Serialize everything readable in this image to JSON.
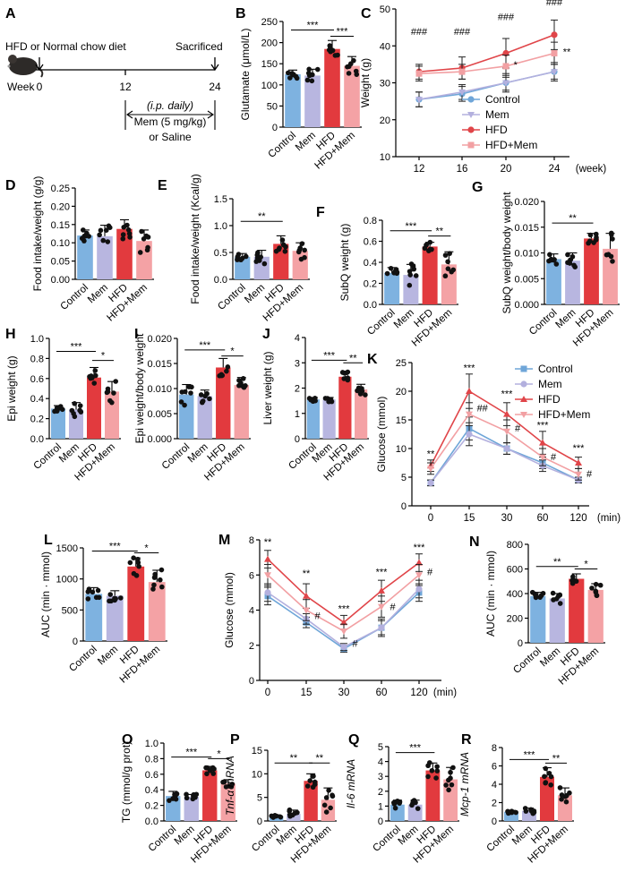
{
  "colors": {
    "control": "#7EB2E0",
    "mem": "#B8B6E0",
    "hfd": "#E23A3E",
    "hfdmem": "#F4A2A5"
  },
  "groups": [
    "Control",
    "Mem",
    "HFD",
    "HFD+Mem"
  ],
  "panel_a": {
    "letter": "A",
    "top_label": "HFD or Normal chow diet",
    "sacrificed": "Sacrificed",
    "week_prefix": "Week",
    "w0": "0",
    "w12": "12",
    "w24": "24",
    "ip": "(i.p. daily)",
    "dose": "Mem (5 mg/kg)",
    "saline": "or Saline"
  },
  "chart_data": [
    {
      "id": "B",
      "type": "bar",
      "ylabel": "Glutamate (μmol/L)",
      "ylim": [
        0,
        250
      ],
      "yticks": [
        "0",
        "50",
        "100",
        "150",
        "200",
        "250"
      ],
      "categories": [
        "Control",
        "Mem",
        "HFD",
        "HFD+Mem"
      ],
      "values": [
        125,
        122,
        185,
        145
      ],
      "errors": [
        10,
        15,
        20,
        22
      ],
      "sig": [
        {
          "from": 0,
          "to": 2,
          "label": "***",
          "y": 230
        },
        {
          "from": 2,
          "to": 3,
          "label": "***",
          "y": 215
        }
      ]
    },
    {
      "id": "D",
      "type": "bar",
      "ylabel": "Food intake/weight (g/g)",
      "ylim": [
        0,
        0.25
      ],
      "yticks": [
        "0.00",
        "0.05",
        "0.10",
        "0.15",
        "0.20",
        "0.25"
      ],
      "categories": [
        "Control",
        "Mem",
        "HFD",
        "HFD+Mem"
      ],
      "values": [
        0.12,
        0.118,
        0.138,
        0.105
      ],
      "errors": [
        0.015,
        0.03,
        0.025,
        0.03
      ],
      "sig": []
    },
    {
      "id": "E",
      "type": "bar",
      "ylabel": "Food intake/weight (Kcal/g)",
      "ylim": [
        0,
        1.5
      ],
      "yticks": [
        "0.0",
        "0.5",
        "1.0",
        "1.5"
      ],
      "categories": [
        "Control",
        "Mem",
        "HFD",
        "HFD+Mem"
      ],
      "values": [
        0.42,
        0.42,
        0.66,
        0.53
      ],
      "errors": [
        0.06,
        0.12,
        0.15,
        0.15
      ],
      "sig": [
        {
          "from": 0,
          "to": 2,
          "label": "**",
          "y": 1.08
        }
      ]
    },
    {
      "id": "F",
      "type": "bar",
      "ylabel": "SubQ weight (g)",
      "ylim": [
        0,
        0.8
      ],
      "yticks": [
        "0.0",
        "0.2",
        "0.4",
        "0.6",
        "0.8"
      ],
      "categories": [
        "Control",
        "Mem",
        "HFD",
        "HFD+Mem"
      ],
      "values": [
        0.3,
        0.28,
        0.55,
        0.38
      ],
      "errors": [
        0.05,
        0.1,
        0.04,
        0.12
      ],
      "sig": [
        {
          "from": 0,
          "to": 2,
          "label": "***",
          "y": 0.7
        },
        {
          "from": 2,
          "to": 3,
          "label": "**",
          "y": 0.65
        }
      ]
    },
    {
      "id": "G",
      "type": "bar",
      "ylabel": "SubQ weight/body weight",
      "ylim": [
        0,
        0.02
      ],
      "yticks": [
        "0.000",
        "0.005",
        "0.010",
        "0.015",
        "0.020"
      ],
      "categories": [
        "Control",
        "Mem",
        "HFD",
        "HFD+Mem"
      ],
      "values": [
        0.0088,
        0.0085,
        0.0128,
        0.0108
      ],
      "errors": [
        0.001,
        0.0015,
        0.001,
        0.003
      ],
      "sig": [
        {
          "from": 0,
          "to": 2,
          "label": "**",
          "y": 0.0158
        }
      ]
    },
    {
      "id": "H",
      "type": "bar",
      "ylabel": "Epi weight (g)",
      "ylim": [
        0,
        1.0
      ],
      "yticks": [
        "0.0",
        "0.2",
        "0.4",
        "0.6",
        "0.8",
        "1.0"
      ],
      "categories": [
        "Control",
        "Mem",
        "HFD",
        "HFD+Mem"
      ],
      "values": [
        0.3,
        0.29,
        0.61,
        0.47
      ],
      "errors": [
        0.03,
        0.07,
        0.1,
        0.1
      ],
      "sig": [
        {
          "from": 0,
          "to": 2,
          "label": "***",
          "y": 0.87
        },
        {
          "from": 2,
          "to": 3,
          "label": "*",
          "y": 0.78
        }
      ]
    },
    {
      "id": "I",
      "type": "bar",
      "ylabel": "Epi weight/body weight",
      "ylim": [
        0,
        0.02
      ],
      "yticks": [
        "0.000",
        "0.005",
        "0.010",
        "0.015",
        "0.020"
      ],
      "categories": [
        "Control",
        "Mem",
        "HFD",
        "HFD+Mem"
      ],
      "values": [
        0.0088,
        0.0085,
        0.0142,
        0.0107
      ],
      "errors": [
        0.002,
        0.0012,
        0.0018,
        0.0015
      ],
      "sig": [
        {
          "from": 0,
          "to": 2,
          "label": "***",
          "y": 0.0177
        },
        {
          "from": 2,
          "to": 3,
          "label": "*",
          "y": 0.0165
        }
      ]
    },
    {
      "id": "J",
      "type": "bar",
      "ylabel": "Liver weight (g)",
      "ylim": [
        0,
        4
      ],
      "yticks": [
        "0",
        "1",
        "2",
        "3",
        "4"
      ],
      "categories": [
        "Control",
        "Mem",
        "HFD",
        "HFD+Mem"
      ],
      "values": [
        1.55,
        1.55,
        2.45,
        1.95
      ],
      "errors": [
        0.08,
        0.08,
        0.18,
        0.2
      ],
      "sig": [
        {
          "from": 0,
          "to": 2,
          "label": "***",
          "y": 3.1
        },
        {
          "from": 2,
          "to": 3,
          "label": "**",
          "y": 3.0
        }
      ]
    },
    {
      "id": "L",
      "type": "bar",
      "ylabel": "AUC (min · mmol)",
      "ylim": [
        0,
        1500
      ],
      "yticks": [
        "0",
        "500",
        "1000",
        "1500"
      ],
      "categories": [
        "Control",
        "Mem",
        "HFD",
        "HFD+Mem"
      ],
      "values": [
        760,
        730,
        1200,
        950
      ],
      "errors": [
        100,
        80,
        140,
        190
      ],
      "sig": [
        {
          "from": 0,
          "to": 2,
          "label": "***",
          "y": 1450
        },
        {
          "from": 2,
          "to": 3,
          "label": "*",
          "y": 1420
        }
      ]
    },
    {
      "id": "N",
      "type": "bar",
      "ylabel": "AUC (min · mmol)",
      "ylim": [
        0,
        800
      ],
      "yticks": [
        "0",
        "200",
        "400",
        "600",
        "800"
      ],
      "categories": [
        "Control",
        "Mem",
        "HFD",
        "HFD+Mem"
      ],
      "values": [
        380,
        360,
        520,
        430
      ],
      "errors": [
        30,
        40,
        40,
        50
      ],
      "sig": [
        {
          "from": 0,
          "to": 2,
          "label": "**",
          "y": 620
        },
        {
          "from": 2,
          "to": 3,
          "label": "*",
          "y": 600
        }
      ]
    },
    {
      "id": "O",
      "type": "bar",
      "ylabel": "TG (mmol/g prot)",
      "ylim": [
        0,
        1.0
      ],
      "yticks": [
        "0.0",
        "0.2",
        "0.4",
        "0.6",
        "0.8",
        "1.0"
      ],
      "categories": [
        "Control",
        "Mem",
        "HFD",
        "HFD+Mem"
      ],
      "values": [
        0.32,
        0.31,
        0.65,
        0.48
      ],
      "errors": [
        0.06,
        0.03,
        0.05,
        0.05
      ],
      "sig": [
        {
          "from": 0,
          "to": 2,
          "label": "***",
          "y": 0.82
        },
        {
          "from": 2,
          "to": 3,
          "label": "*",
          "y": 0.8
        }
      ]
    },
    {
      "id": "P",
      "type": "bar",
      "ylabel": "Tnf-α mRNA",
      "italic": true,
      "ylim": [
        0,
        15
      ],
      "yticks": [
        "0",
        "5",
        "10",
        "15"
      ],
      "categories": [
        "Control",
        "Mem",
        "HFD",
        "HFD+Mem"
      ],
      "values": [
        1.0,
        1.5,
        8.5,
        4.5
      ],
      "errors": [
        0.3,
        0.8,
        1.5,
        2.5
      ],
      "sig": [
        {
          "from": 0,
          "to": 2,
          "label": "**",
          "y": 12.3
        },
        {
          "from": 2,
          "to": 3,
          "label": "**",
          "y": 12.3
        }
      ]
    },
    {
      "id": "Q",
      "type": "bar",
      "ylabel": "Il-6 mRNA",
      "italic": true,
      "ylim": [
        0,
        5
      ],
      "yticks": [
        "0",
        "1",
        "2",
        "3",
        "4",
        "5"
      ],
      "categories": [
        "Control",
        "Mem",
        "HFD",
        "HFD+Mem"
      ],
      "values": [
        1.1,
        1.1,
        3.4,
        2.8
      ],
      "errors": [
        0.3,
        0.3,
        0.5,
        0.8
      ],
      "sig": [
        {
          "from": 0,
          "to": 2,
          "label": "***",
          "y": 4.6
        }
      ]
    },
    {
      "id": "R",
      "type": "bar",
      "ylabel": "Mcp-1 mRNA",
      "italic": true,
      "ylim": [
        0,
        8
      ],
      "yticks": [
        "0",
        "2",
        "4",
        "6",
        "8"
      ],
      "categories": [
        "Control",
        "Mem",
        "HFD",
        "HFD+Mem"
      ],
      "values": [
        1.0,
        1.1,
        4.8,
        2.8
      ],
      "errors": [
        0.15,
        0.3,
        1.0,
        0.8
      ],
      "sig": [
        {
          "from": 0,
          "to": 2,
          "label": "***",
          "y": 6.7
        },
        {
          "from": 2,
          "to": 3,
          "label": "**",
          "y": 6.3
        }
      ]
    },
    {
      "id": "C",
      "type": "line",
      "ylabel": "Weight (g)",
      "xlabel": "(week)",
      "ylim": [
        10,
        50
      ],
      "yticks": [
        "10",
        "20",
        "30",
        "40",
        "50"
      ],
      "x": [
        "12",
        "16",
        "20",
        "24"
      ],
      "series": [
        {
          "name": "Control",
          "values": [
            25.5,
            27,
            30,
            33
          ],
          "errors": [
            2,
            2,
            2.5,
            2.5
          ]
        },
        {
          "name": "Mem",
          "values": [
            25.5,
            27.5,
            30,
            33
          ],
          "errors": [
            2,
            2,
            2,
            2
          ]
        },
        {
          "name": "HFD",
          "values": [
            33,
            34,
            38,
            43
          ],
          "errors": [
            2,
            3,
            4,
            4
          ]
        },
        {
          "name": "HFD+Mem",
          "values": [
            32.5,
            33,
            34.5,
            38
          ],
          "errors": [
            2,
            2,
            3,
            3
          ]
        }
      ],
      "annotations": [
        {
          "at": 0,
          "label": "###",
          "y": 43
        },
        {
          "at": 1,
          "label": "###",
          "y": 43
        },
        {
          "at": 2,
          "label": "###",
          "y": 47
        },
        {
          "at": 3,
          "label": "###",
          "y": 51
        },
        {
          "at": 2.2,
          "label": "*",
          "y": 34
        },
        {
          "at": 3.35,
          "label": "**",
          "y": 37.5
        }
      ],
      "legend": [
        "Control",
        "Mem",
        "HFD",
        "HFD+Mem"
      ]
    },
    {
      "id": "K",
      "type": "line",
      "ylabel": "Glucose (mmol)",
      "xlabel": "(min)",
      "ylim": [
        0,
        25
      ],
      "yticks": [
        "0",
        "5",
        "10",
        "15",
        "20",
        "25"
      ],
      "x": [
        "0",
        "15",
        "30",
        "60",
        "120"
      ],
      "series": [
        {
          "name": "Control",
          "values": [
            4,
            13.5,
            10,
            7.5,
            4.5
          ],
          "errors": [
            0.5,
            2,
            1,
            1,
            0.5
          ]
        },
        {
          "name": "Mem",
          "values": [
            4,
            12.5,
            10,
            7,
            4.5
          ],
          "errors": [
            0.5,
            2,
            1,
            1,
            0.5
          ]
        },
        {
          "name": "HFD",
          "values": [
            7,
            20,
            16,
            11,
            7.5
          ],
          "errors": [
            1,
            3,
            2,
            2,
            1
          ]
        },
        {
          "name": "HFD+Mem",
          "values": [
            6.5,
            16,
            13,
            8.5,
            5.5
          ],
          "errors": [
            1,
            2,
            2,
            1.5,
            1
          ]
        }
      ],
      "annotations": [
        {
          "at": 0,
          "label": "**",
          "y": 8.5
        },
        {
          "at": 1,
          "label": "***",
          "y": 23.5
        },
        {
          "at": 1.35,
          "label": "##",
          "y": 16.5
        },
        {
          "at": 2,
          "label": "***",
          "y": 19
        },
        {
          "at": 2.3,
          "label": "#",
          "y": 13
        },
        {
          "at": 3,
          "label": "***",
          "y": 13.5
        },
        {
          "at": 3.3,
          "label": "#",
          "y": 8
        },
        {
          "at": 4,
          "label": "***",
          "y": 9.5
        },
        {
          "at": 4.3,
          "label": "#",
          "y": 5
        }
      ],
      "legend": [
        "Control",
        "Mem",
        "HFD",
        "HFD+Mem"
      ]
    },
    {
      "id": "M",
      "type": "line",
      "ylabel": "Glucose (mmol)",
      "xlabel": "(min)",
      "ylim": [
        0,
        8
      ],
      "yticks": [
        "0",
        "2",
        "4",
        "6",
        "8"
      ],
      "x": [
        "0",
        "15",
        "30",
        "60",
        "120"
      ],
      "series": [
        {
          "name": "Control",
          "values": [
            4.8,
            3.3,
            1.8,
            3.0,
            5.0
          ],
          "errors": [
            0.5,
            0.3,
            0.2,
            0.5,
            0.5
          ]
        },
        {
          "name": "Mem",
          "values": [
            5.0,
            3.5,
            1.9,
            3.0,
            5.2
          ],
          "errors": [
            0.5,
            0.3,
            0.2,
            0.4,
            0.5
          ]
        },
        {
          "name": "HFD",
          "values": [
            6.9,
            4.8,
            3.3,
            5.1,
            6.7
          ],
          "errors": [
            0.5,
            0.7,
            0.4,
            0.6,
            0.5
          ]
        },
        {
          "name": "HFD+Mem",
          "values": [
            6.0,
            4.0,
            2.8,
            4.2,
            6.0
          ],
          "errors": [
            0.6,
            0.6,
            0.4,
            0.6,
            0.6
          ]
        }
      ],
      "annotations": [
        {
          "at": 0,
          "label": "**",
          "y": 7.7
        },
        {
          "at": 1,
          "label": "**",
          "y": 5.9
        },
        {
          "at": 1.3,
          "label": "#",
          "y": 3.5
        },
        {
          "at": 2,
          "label": "***",
          "y": 3.9
        },
        {
          "at": 2.3,
          "label": "#",
          "y": 1.9
        },
        {
          "at": 3,
          "label": "***",
          "y": 6.0
        },
        {
          "at": 3.3,
          "label": "#",
          "y": 4.0
        },
        {
          "at": 4,
          "label": "***",
          "y": 7.4
        },
        {
          "at": 4.3,
          "label": "#",
          "y": 6.0
        }
      ]
    }
  ]
}
